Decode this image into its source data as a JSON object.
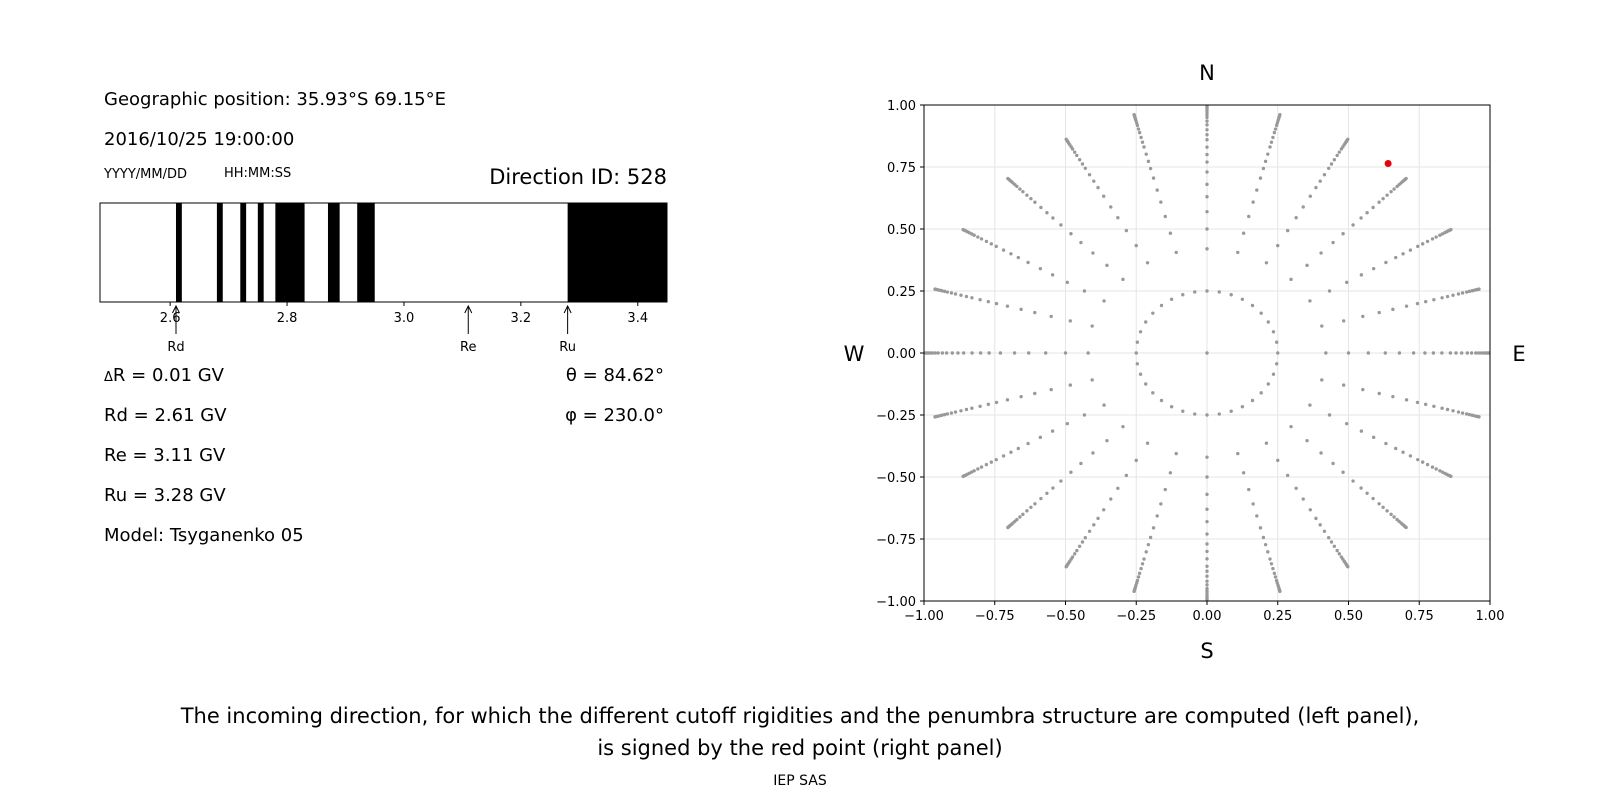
{
  "left_panel": {
    "geo_position": "Geographic position: 35.93°S 69.15°E",
    "datetime": "2016/10/25 19:00:00",
    "date_format": "YYYY/MM/DD",
    "time_format": "HH:MM:SS",
    "direction_id": "Direction ID: 528",
    "delta_r": "R = 0.01 GV",
    "delta_symbol": "Δ",
    "rd": "Rd = 2.61 GV",
    "re": "Re = 3.11 GV",
    "ru": "Ru = 3.28 GV",
    "model": "Model: Tsyganenko 05",
    "theta": "θ = 84.62°",
    "phi": "φ = 230.0°"
  },
  "right_panel": {
    "north": "N",
    "south": "S",
    "west": "W",
    "east": "E"
  },
  "caption_line1": "The incoming direction, for which the different cutoff rigidities and the penumbra structure are computed (left panel),",
  "caption_line2": "is signed by the red point (right panel)",
  "footer": "IEP SAS",
  "chart_data": [
    {
      "type": "bar",
      "name": "penumbra",
      "xlim": [
        2.48,
        3.45
      ],
      "xticks": [
        "2.6",
        "2.8",
        "3.0",
        "3.2",
        "3.4"
      ],
      "xtick_values": [
        2.6,
        2.8,
        3.0,
        3.2,
        3.4
      ],
      "forbidden_bands": [
        [
          2.61,
          2.62
        ],
        [
          2.68,
          2.69
        ],
        [
          2.72,
          2.73
        ],
        [
          2.75,
          2.76
        ],
        [
          2.78,
          2.83
        ],
        [
          2.87,
          2.89
        ],
        [
          2.92,
          2.95
        ],
        [
          3.28,
          3.45
        ]
      ],
      "markers": [
        {
          "label": "Rd",
          "value": 2.61
        },
        {
          "label": "Re",
          "value": 3.11
        },
        {
          "label": "Ru",
          "value": 3.28
        }
      ],
      "colors": {
        "forbidden": "#000000",
        "allowed": "#ffffff"
      }
    },
    {
      "type": "scatter",
      "name": "directions",
      "xlim": [
        -1.0,
        1.0
      ],
      "ylim": [
        -1.0,
        1.0
      ],
      "xticks": [
        "−1.00",
        "−0.75",
        "−0.50",
        "−0.25",
        "0.00",
        "0.25",
        "0.50",
        "0.75",
        "1.00"
      ],
      "yticks": [
        "1.00",
        "0.75",
        "0.50",
        "0.25",
        "0.00",
        "−0.25",
        "−0.50",
        "−0.75",
        "−1.00"
      ],
      "tick_values": [
        -1.0,
        -0.75,
        -0.5,
        -0.25,
        0.0,
        0.25,
        0.5,
        0.75,
        1.0
      ],
      "grid": true,
      "pattern": {
        "rays": 24,
        "ray_step_deg": 15,
        "inner_ring_radius": 0.25,
        "inner_ring_points": 36,
        "ring_radii": [
          0.42,
          0.5,
          0.57,
          0.63,
          0.68,
          0.73,
          0.77,
          0.8,
          0.83,
          0.86,
          0.88,
          0.9,
          0.92,
          0.935,
          0.95,
          0.96,
          0.97,
          0.978,
          0.985,
          0.99,
          0.995
        ],
        "center": [
          0.0,
          0.0
        ],
        "point_color": "#999999"
      },
      "highlight": {
        "x": 0.64,
        "y": 0.764,
        "color": "#e8000b"
      }
    }
  ]
}
